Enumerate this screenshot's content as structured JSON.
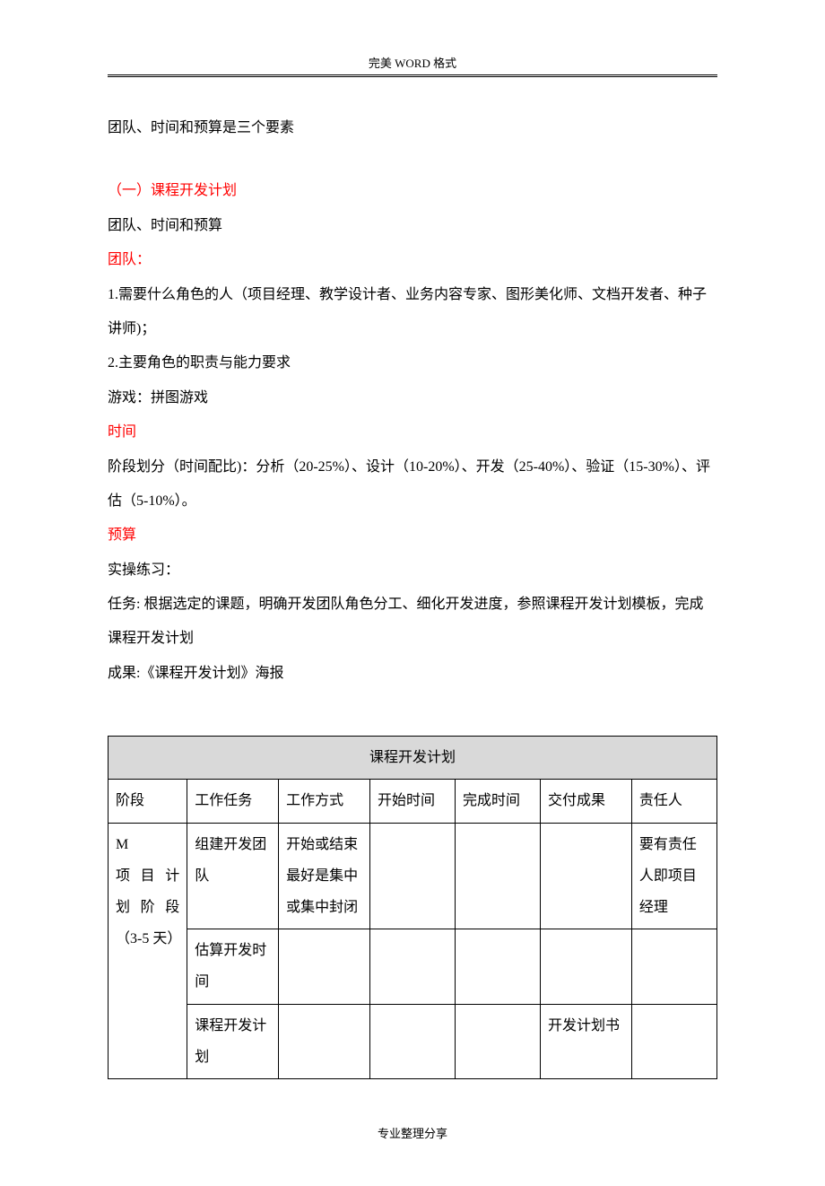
{
  "header": {
    "text": "完美 WORD 格式"
  },
  "intro": {
    "line": "团队、时间和预算是三个要素"
  },
  "section1": {
    "heading": "（一）课程开发计划",
    "subtitle": "团队、时间和预算",
    "team": {
      "label": "团队：",
      "point1": "1.需要什么角色的人（项目经理、教学设计者、业务内容专家、图形美化师、文档开发者、种子讲师)；",
      "point2": "2.主要角色的职责与能力要求",
      "game": "游戏：拼图游戏"
    },
    "time": {
      "label": "时间",
      "content": "阶段划分（时间配比)：分析（20-25%）、设计（10-20%）、开发（25-40%）、验证（15-30%）、评估（5-10%）。"
    },
    "budget": {
      "label": "预算",
      "practice": "实操练习：",
      "task": "任务: 根据选定的课题，明确开发团队角色分工、细化开发进度，参照课程开发计划模板，完成课程开发计划",
      "result": "成果:《课程开发计划》海报"
    }
  },
  "table": {
    "title": "课程开发计划",
    "headers": {
      "stage": "阶段",
      "task": "工作任务",
      "method": "工作方式",
      "start": "开始时间",
      "end": "完成时间",
      "deliverable": "交付成果",
      "owner": "责任人"
    },
    "rows": [
      {
        "stage": "M\n项 目 计\n划 阶 段\n（3-5 天）",
        "task": "组建开发团队",
        "method": "开始或结束最好是集中或集中封闭",
        "start": "",
        "end": "",
        "deliverable": "",
        "owner": "要有责任人即项目经理"
      },
      {
        "stage": "",
        "task": "估算开发时间",
        "method": "",
        "start": "",
        "end": "",
        "deliverable": "",
        "owner": ""
      },
      {
        "stage": "",
        "task": "课程开发计划",
        "method": "",
        "start": "",
        "end": "",
        "deliverable": "开发计划书",
        "owner": ""
      }
    ]
  },
  "footer": {
    "text": "专业整理分享"
  }
}
